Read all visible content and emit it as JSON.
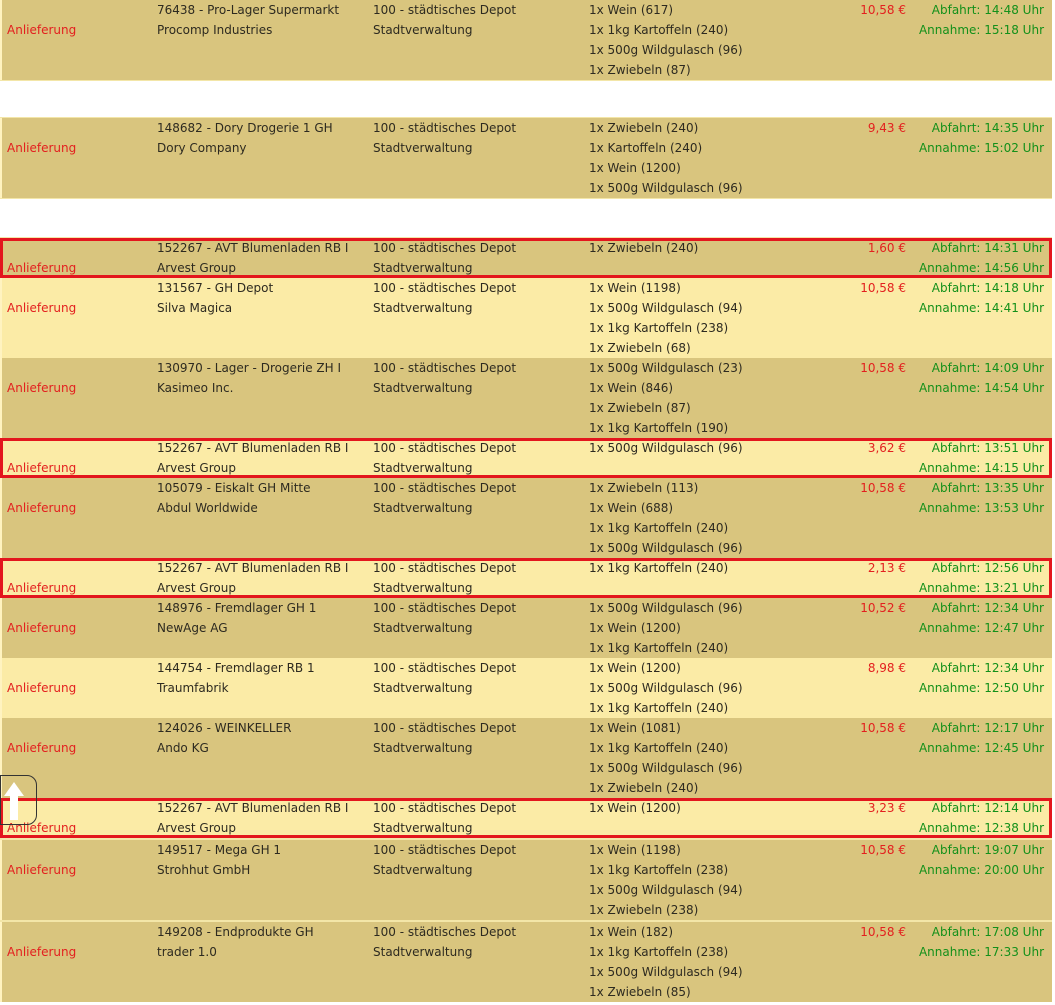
{
  "rows": [
    {
      "type": "Anlieferung",
      "origin": "76438 - Pro-Lager Supermarkt",
      "company": "Procomp Industries",
      "depot": "100 - städtisches Depot",
      "owner": "Stadtverwaltung",
      "items": [
        "1x Wein (617)",
        "1x 1kg Kartoffeln (240)",
        "1x 500g Wildgulasch (96)",
        "1x Zwiebeln (87)"
      ],
      "price": "10,58 €",
      "departure": "Abfahrt: 14:48 Uhr",
      "arrival": "Annahme: 15:18 Uhr",
      "color": "#d9c57e",
      "highlight": false
    },
    {
      "type": "Anlieferung",
      "origin": "148682 - Dory Drogerie 1 GH",
      "company": "Dory Company",
      "depot": "100 - städtisches Depot",
      "owner": "Stadtverwaltung",
      "items": [
        "1x Zwiebeln (240)",
        "1x Kartoffeln (240)",
        "1x Wein (1200)",
        "1x 500g Wildgulasch (96)"
      ],
      "price": "9,43 €",
      "departure": "Abfahrt: 14:35 Uhr",
      "arrival": "Annahme: 15:02 Uhr",
      "color": "#d9c57e",
      "highlight": false
    },
    {
      "type": "Anlieferung",
      "origin": "152267 - AVT Blumenladen RB I",
      "company": "Arvest Group",
      "depot": "100 - städtisches Depot",
      "owner": "Stadtverwaltung",
      "items": [
        "1x Zwiebeln (240)"
      ],
      "price": "1,60 €",
      "departure": "Abfahrt: 14:31 Uhr",
      "arrival": "Annahme: 14:56 Uhr",
      "color": "#d9c57e",
      "highlight": true
    },
    {
      "type": "Anlieferung",
      "origin": "131567 - GH Depot",
      "company": "Silva Magica",
      "depot": "100 - städtisches Depot",
      "owner": "Stadtverwaltung",
      "items": [
        "1x Wein (1198)",
        "1x 500g Wildgulasch (94)",
        "1x 1kg Kartoffeln (238)",
        "1x Zwiebeln (68)"
      ],
      "price": "10,58 €",
      "departure": "Abfahrt: 14:18 Uhr",
      "arrival": "Annahme: 14:41 Uhr",
      "color": "#fbeba6",
      "highlight": false
    },
    {
      "type": "Anlieferung",
      "origin": "130970 - Lager - Drogerie ZH I",
      "company": "Kasimeo Inc.",
      "depot": "100 - städtisches Depot",
      "owner": "Stadtverwaltung",
      "items": [
        "1x 500g Wildgulasch (23)",
        "1x Wein (846)",
        "1x Zwiebeln (87)",
        "1x 1kg Kartoffeln (190)"
      ],
      "price": "10,58 €",
      "departure": "Abfahrt: 14:09 Uhr",
      "arrival": "Annahme: 14:54 Uhr",
      "color": "#d9c57e",
      "highlight": false
    },
    {
      "type": "Anlieferung",
      "origin": "152267 - AVT Blumenladen RB I",
      "company": "Arvest Group",
      "depot": "100 - städtisches Depot",
      "owner": "Stadtverwaltung",
      "items": [
        "1x 500g Wildgulasch (96)"
      ],
      "price": "3,62 €",
      "departure": "Abfahrt: 13:51 Uhr",
      "arrival": "Annahme: 14:15 Uhr",
      "color": "#fbeba6",
      "highlight": true
    },
    {
      "type": "Anlieferung",
      "origin": "105079 - Eiskalt GH Mitte",
      "company": "Abdul Worldwide",
      "depot": "100 - städtisches Depot",
      "owner": "Stadtverwaltung",
      "items": [
        "1x Zwiebeln (113)",
        "1x Wein (688)",
        "1x 1kg Kartoffeln (240)",
        "1x 500g Wildgulasch (96)"
      ],
      "price": "10,58 €",
      "departure": "Abfahrt: 13:35 Uhr",
      "arrival": "Annahme: 13:53 Uhr",
      "color": "#d9c57e",
      "highlight": false
    },
    {
      "type": "Anlieferung",
      "origin": "152267 - AVT Blumenladen RB I",
      "company": "Arvest Group",
      "depot": "100 - städtisches Depot",
      "owner": "Stadtverwaltung",
      "items": [
        "1x 1kg Kartoffeln (240)"
      ],
      "price": "2,13 €",
      "departure": "Abfahrt: 12:56 Uhr",
      "arrival": "Annahme: 13:21 Uhr",
      "color": "#fbeba6",
      "highlight": true
    },
    {
      "type": "Anlieferung",
      "origin": "148976 - Fremdlager GH 1",
      "company": "NewAge AG",
      "depot": "100 - städtisches Depot",
      "owner": "Stadtverwaltung",
      "items": [
        "1x 500g Wildgulasch (96)",
        "1x Wein (1200)",
        "1x 1kg Kartoffeln (240)"
      ],
      "price": "10,52 €",
      "departure": "Abfahrt: 12:34 Uhr",
      "arrival": "Annahme: 12:47 Uhr",
      "color": "#d9c57e",
      "highlight": false
    },
    {
      "type": "Anlieferung",
      "origin": "144754 - Fremdlager RB 1",
      "company": "Traumfabrik",
      "depot": "100 - städtisches Depot",
      "owner": "Stadtverwaltung",
      "items": [
        "1x Wein (1200)",
        "1x 500g Wildgulasch (96)",
        "1x 1kg Kartoffeln (240)"
      ],
      "price": "8,98 €",
      "departure": "Abfahrt: 12:34 Uhr",
      "arrival": "Annahme: 12:50 Uhr",
      "color": "#fbeba6",
      "highlight": false
    },
    {
      "type": "Anlieferung",
      "origin": "124026 - WEINKELLER",
      "company": "Ando KG",
      "depot": "100 - städtisches Depot",
      "owner": "Stadtverwaltung",
      "items": [
        "1x Wein (1081)",
        "1x 1kg Kartoffeln (240)",
        "1x 500g Wildgulasch (96)",
        "1x Zwiebeln (240)"
      ],
      "price": "10,58 €",
      "departure": "Abfahrt: 12:17 Uhr",
      "arrival": "Annahme: 12:45 Uhr",
      "color": "#d9c57e",
      "highlight": false
    },
    {
      "type": "Anlieferung",
      "origin": "152267 - AVT Blumenladen RB I",
      "company": "Arvest Group",
      "depot": "100 - städtisches Depot",
      "owner": "Stadtverwaltung",
      "items": [
        "1x Wein (1200)"
      ],
      "price": "3,23 €",
      "departure": "Abfahrt: 12:14 Uhr",
      "arrival": "Annahme: 12:38 Uhr",
      "color": "#fbeba6",
      "highlight": true
    },
    {
      "type": "Anlieferung",
      "origin": "149517 - Mega GH 1",
      "company": "Strohhut GmbH",
      "depot": "100 - städtisches Depot",
      "owner": "Stadtverwaltung",
      "items": [
        "1x Wein (1198)",
        "1x 1kg Kartoffeln (238)",
        "1x 500g Wildgulasch (94)",
        "1x Zwiebeln (238)"
      ],
      "price": "10,58 €",
      "departure": "Abfahrt: 19:07 Uhr",
      "arrival": "Annahme: 20:00 Uhr",
      "color": "#d9c57e",
      "highlight": false
    },
    {
      "type": "Anlieferung",
      "origin": "149208 - Endprodukte GH",
      "company": "trader 1.0",
      "depot": "100 - städtisches Depot",
      "owner": "Stadtverwaltung",
      "items": [
        "1x Wein (182)",
        "1x 1kg Kartoffeln (238)",
        "1x 500g Wildgulasch (94)",
        "1x Zwiebeln (85)"
      ],
      "price": "10,58 €",
      "departure": "Abfahrt: 17:08 Uhr",
      "arrival": "Annahme: 17:33 Uhr",
      "color": "#d9c57e",
      "highlight": false
    }
  ]
}
